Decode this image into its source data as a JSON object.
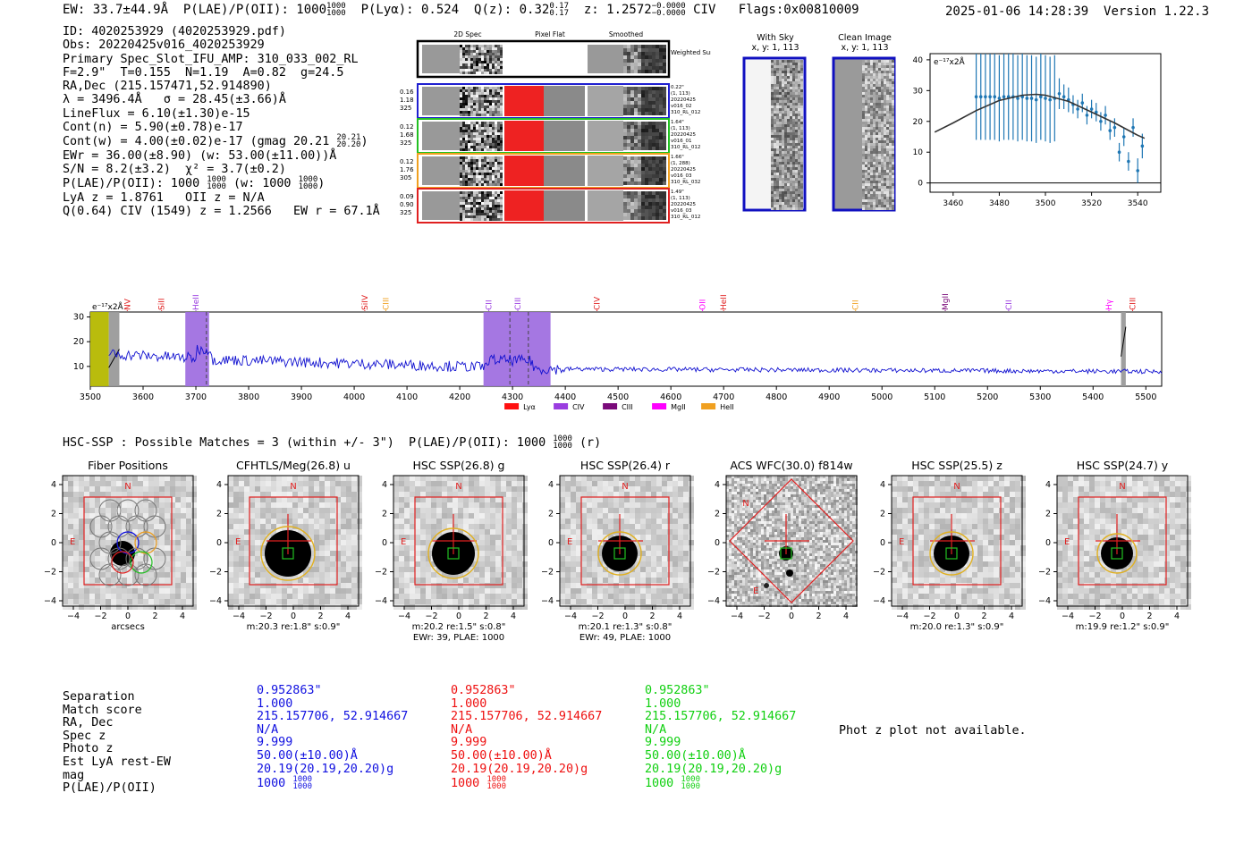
{
  "header": {
    "ew": "EW: 33.7±44.9Å",
    "plae_label": "P(LAE)/P(OII): 1000",
    "plae_frac_top": "1000",
    "plae_frac_bot": "1000",
    "plya": "P(Lyα): 0.524",
    "qz": "Q(z): 0.32",
    "qz_top": "0.17",
    "qz_bot": "0.17",
    "z": "z: 1.2572",
    "z_top": "−0.0000",
    "z_bot": "−0.0000",
    "line": "CIV",
    "flags": "Flags:0x00810009",
    "datetime": "2025-01-06 14:28:39",
    "version": "Version 1.22.3"
  },
  "info": {
    "id": "ID: 4020253929 (4020253929.pdf)",
    "obs": "Obs: 20220425v016_4020253929",
    "primary": "Primary Spec_Slot_IFU_AMP: 310_033_002_RL",
    "fwhm": "F=2.9\"  T=0.155  N=1.19  A=0.82  g=24.5",
    "radec": "RA,Dec (215.157471,52.914890)",
    "lambda": "λ = 3496.4Å   σ = 28.45(±3.66)Å",
    "lineflux": "LineFlux = 6.10(±1.30)e-15",
    "contn": "Cont(n) = 5.90(±0.78)e-17",
    "contw": "Cont(w) = 4.00(±0.02)e-17 (gmag 20.21",
    "contw_top": "20.21",
    "contw_bot": "20.20",
    "contw_end": ")",
    "ewr": "EWr = 36.00(±8.90) (w: 53.00(±11.00))Å",
    "sn": "S/N = 8.2(±3.2)  χ² = 3.7(±0.2)",
    "plae": "P(LAE)/P(OII): 1000",
    "plae_top": "1000",
    "plae_bot": "1000",
    "plae_w": "(w: 1000",
    "plae_w_top": "1000",
    "plae_w_bot": "1000",
    "plae_w_end": ")",
    "lya": "LyA z = 1.8761   OII z = N/A",
    "civ": "Q(0.64) CIV (1549) z = 1.2566   EW r = 67.1Å"
  },
  "fiber_panel": {
    "col_headers": [
      "2D Spec",
      "Pixel Flat",
      "Smoothed"
    ],
    "weighted_sum": "Weighted Sum",
    "rows": [
      {
        "left": [
          "0.16",
          "1.18",
          "325"
        ],
        "right": [
          "0.22\"",
          "(1, 113)",
          "20220425",
          "v016_02",
          "310_RL_012"
        ],
        "color": "#1f1fd0"
      },
      {
        "left": [
          "0.12",
          "1.68",
          "325"
        ],
        "right": [
          "1.64\"",
          "(1, 113)",
          "20220425",
          "v016_01",
          "310_RL_012"
        ],
        "color": "#22c022"
      },
      {
        "left": [
          "0.12",
          "1.76",
          "305"
        ],
        "right": [
          "1.66\"",
          "(1, 288)",
          "20220425",
          "v016_03",
          "310_RL_032"
        ],
        "color": "#f0a020"
      },
      {
        "left": [
          "0.09",
          "0.90",
          "325"
        ],
        "right": [
          "1.49\"",
          "(1, 113)",
          "20220425",
          "v016_03",
          "310_RL_012"
        ],
        "color": "#e02020"
      }
    ]
  },
  "sky_panels": {
    "with_sky": "With Sky",
    "with_sky_xy": "x, y: 1, 113",
    "clean": "Clean Image",
    "clean_xy": "x, y: 1, 113"
  },
  "chart_data": [
    {
      "type": "scatter",
      "title": "",
      "ylabel_unit": "e⁻¹⁷x2Å",
      "xlim": [
        3450,
        3550
      ],
      "ylim": [
        -3,
        42
      ],
      "xticks": [
        "3460",
        "3480",
        "3500",
        "3520",
        "3540"
      ],
      "yticks": [
        "0",
        "10",
        "20",
        "30",
        "40"
      ],
      "points_x": [
        3470,
        3472,
        3474,
        3476,
        3478,
        3480,
        3482,
        3484,
        3486,
        3488,
        3490,
        3492,
        3494,
        3496,
        3498,
        3500,
        3502,
        3504,
        3506,
        3508,
        3510,
        3512,
        3514,
        3516,
        3518,
        3520,
        3522,
        3524,
        3526,
        3528,
        3530,
        3532,
        3534,
        3536,
        3538,
        3540,
        3542
      ],
      "points_y": [
        28,
        28,
        28,
        28,
        28,
        27.5,
        28,
        28,
        28,
        27.5,
        28,
        27.5,
        27.5,
        27,
        28,
        27.5,
        27,
        27.5,
        29,
        28,
        27,
        25.5,
        24,
        26,
        22,
        24,
        23,
        20,
        22,
        17,
        18,
        10,
        15,
        7,
        18,
        4,
        12
      ],
      "points_err": [
        14,
        14,
        14,
        14,
        14,
        14,
        14,
        14,
        14,
        14,
        14,
        14,
        14,
        14,
        14,
        14,
        14,
        14,
        5,
        4,
        4,
        3,
        3,
        3,
        3,
        3,
        3,
        3,
        3,
        3,
        3,
        3,
        3,
        3,
        3,
        4,
        4
      ],
      "fit_x": [
        3452,
        3460,
        3470,
        3480,
        3490,
        3496,
        3500,
        3510,
        3520,
        3530,
        3540,
        3543
      ],
      "fit_y": [
        16.5,
        19.5,
        23.5,
        26.8,
        28.5,
        28.8,
        28.5,
        26.5,
        23,
        19.5,
        15.5,
        14.5
      ],
      "hline_y": 0
    },
    {
      "type": "line",
      "title": "",
      "ylabel_unit": "e⁻¹⁷x2Å",
      "xlim": [
        3500,
        5530
      ],
      "ylim": [
        2,
        32
      ],
      "xticks": [
        "3500",
        "3600",
        "3700",
        "3800",
        "3900",
        "4000",
        "4100",
        "4200",
        "4300",
        "4400",
        "4500",
        "4600",
        "4700",
        "4800",
        "4900",
        "5000",
        "5100",
        "5200",
        "5300",
        "5400",
        "5500"
      ],
      "yticks": [
        "10",
        "20",
        "30"
      ],
      "lines_top": [
        {
          "label": "NV",
          "x": 3570,
          "color": "#e02020"
        },
        {
          "label": "SiII",
          "x": 3635,
          "color": "#e02020"
        },
        {
          "label": "HeII",
          "x": 3700,
          "color": "#9a3de0"
        },
        {
          "label": "SiIV",
          "x": 4020,
          "color": "#e02020"
        },
        {
          "label": "CIII",
          "x": 4060,
          "color": "#f0a020"
        },
        {
          "label": "CII",
          "x": 4255,
          "color": "#9a3de0"
        },
        {
          "label": "CIII",
          "x": 4310,
          "color": "#9a3de0"
        },
        {
          "label": "CIV",
          "x": 4460,
          "color": "#e02020"
        },
        {
          "label": "OII",
          "x": 4660,
          "color": "#ff00ff"
        },
        {
          "label": "HeII",
          "x": 4700,
          "color": "#e02020"
        },
        {
          "label": "CII",
          "x": 4950,
          "color": "#f0a020"
        },
        {
          "label": "MgII",
          "x": 5120,
          "color": "#7a0a7a"
        },
        {
          "label": "CII",
          "x": 5240,
          "color": "#9a3de0"
        },
        {
          "label": "Hγ",
          "x": 5430,
          "color": "#ff00ff"
        },
        {
          "label": "CIII",
          "x": 5475,
          "color": "#e02020"
        }
      ],
      "bands": [
        {
          "x0": 3500,
          "x1": 3535,
          "color": "#b5b800"
        },
        {
          "x0": 3535,
          "x1": 3555,
          "color": "#9a9a9a"
        },
        {
          "x0": 3680,
          "x1": 3725,
          "color": "#a070e0"
        },
        {
          "x0": 4245,
          "x1": 4372,
          "color": "#a070e0"
        },
        {
          "x0": 5453,
          "x1": 5462,
          "color": "#9a9a9a"
        }
      ],
      "dashed": [
        3720,
        4295,
        4330
      ],
      "legend": [
        {
          "label": "Lyα",
          "color": "#ff1010"
        },
        {
          "label": "CIV",
          "color": "#9a3de0"
        },
        {
          "label": "CIII",
          "color": "#7a0a7a"
        },
        {
          "label": "MgII",
          "color": "#ff00ff"
        },
        {
          "label": "HeII",
          "color": "#f0a020"
        }
      ]
    }
  ],
  "hsc": {
    "line": "HSC-SSP : Possible Matches = 3 (within +/- 3\")  P(LAE)/P(OII): 1000",
    "frac_top": "1000",
    "frac_bot": "1000",
    "end": "(r)"
  },
  "cutouts": [
    {
      "title": "Fiber Positions",
      "sub1": "arcsecs",
      "sub2": ""
    },
    {
      "title": "CFHTLS/Meg(26.8) u",
      "sub1": "m:20.3  re:1.8\"  s:0.9\"",
      "sub2": ""
    },
    {
      "title": "HSC SSP(26.8) g",
      "sub1": "m:20.2  re:1.5\"  s:0.8\"",
      "sub2": "EWr: 39, PLAE: 1000"
    },
    {
      "title": "HSC SSP(26.4) r",
      "sub1": "m:20.1  re:1.3\"  s:0.8\"",
      "sub2": "EWr: 49, PLAE: 1000"
    },
    {
      "title": "ACS WFC(30.0) f814w",
      "sub1": "",
      "sub2": ""
    },
    {
      "title": "HSC SSP(25.5) z",
      "sub1": "m:20.0  re:1.3\"  s:0.9\"",
      "sub2": ""
    },
    {
      "title": "HSC SSP(24.7) y",
      "sub1": "m:19.9  re:1.2\"  s:0.9\"",
      "sub2": ""
    }
  ],
  "cutout_ticks": [
    "−4",
    "−2",
    "0",
    "2",
    "4"
  ],
  "cutout_yticks": [
    "4",
    "2",
    "0",
    "−2",
    "−4"
  ],
  "compass": {
    "n": "N",
    "e": "E"
  },
  "match_table": {
    "labels": [
      "Separation",
      "Match score",
      "RA, Dec",
      "Spec z",
      "Photo z",
      "Est LyA rest-EW",
      "mag",
      "P(LAE)/P(OII)"
    ],
    "columns": [
      {
        "color": "#1010e0",
        "values": [
          "0.952863\"",
          "1.000",
          "215.157706, 52.914667",
          "N/A",
          "9.999",
          "50.00(±10.00)Å",
          "20.19(20.19,20.20)g",
          "1000"
        ],
        "frac_top": "1000",
        "frac_bot": "1000"
      },
      {
        "color": "#ee1010",
        "values": [
          "0.952863\"",
          "1.000",
          "215.157706, 52.914667",
          "N/A",
          "9.999",
          "50.00(±10.00)Å",
          "20.19(20.19,20.20)g",
          "1000"
        ],
        "frac_top": "1000",
        "frac_bot": "1000"
      },
      {
        "color": "#10d010",
        "values": [
          "0.952863\"",
          "1.000",
          "215.157706, 52.914667",
          "N/A",
          "9.999",
          "50.00(±10.00)Å",
          "20.19(20.19,20.20)g",
          "1000"
        ],
        "frac_top": "1000",
        "frac_bot": "1000"
      }
    ],
    "phot_z": "Phot z plot not available."
  }
}
